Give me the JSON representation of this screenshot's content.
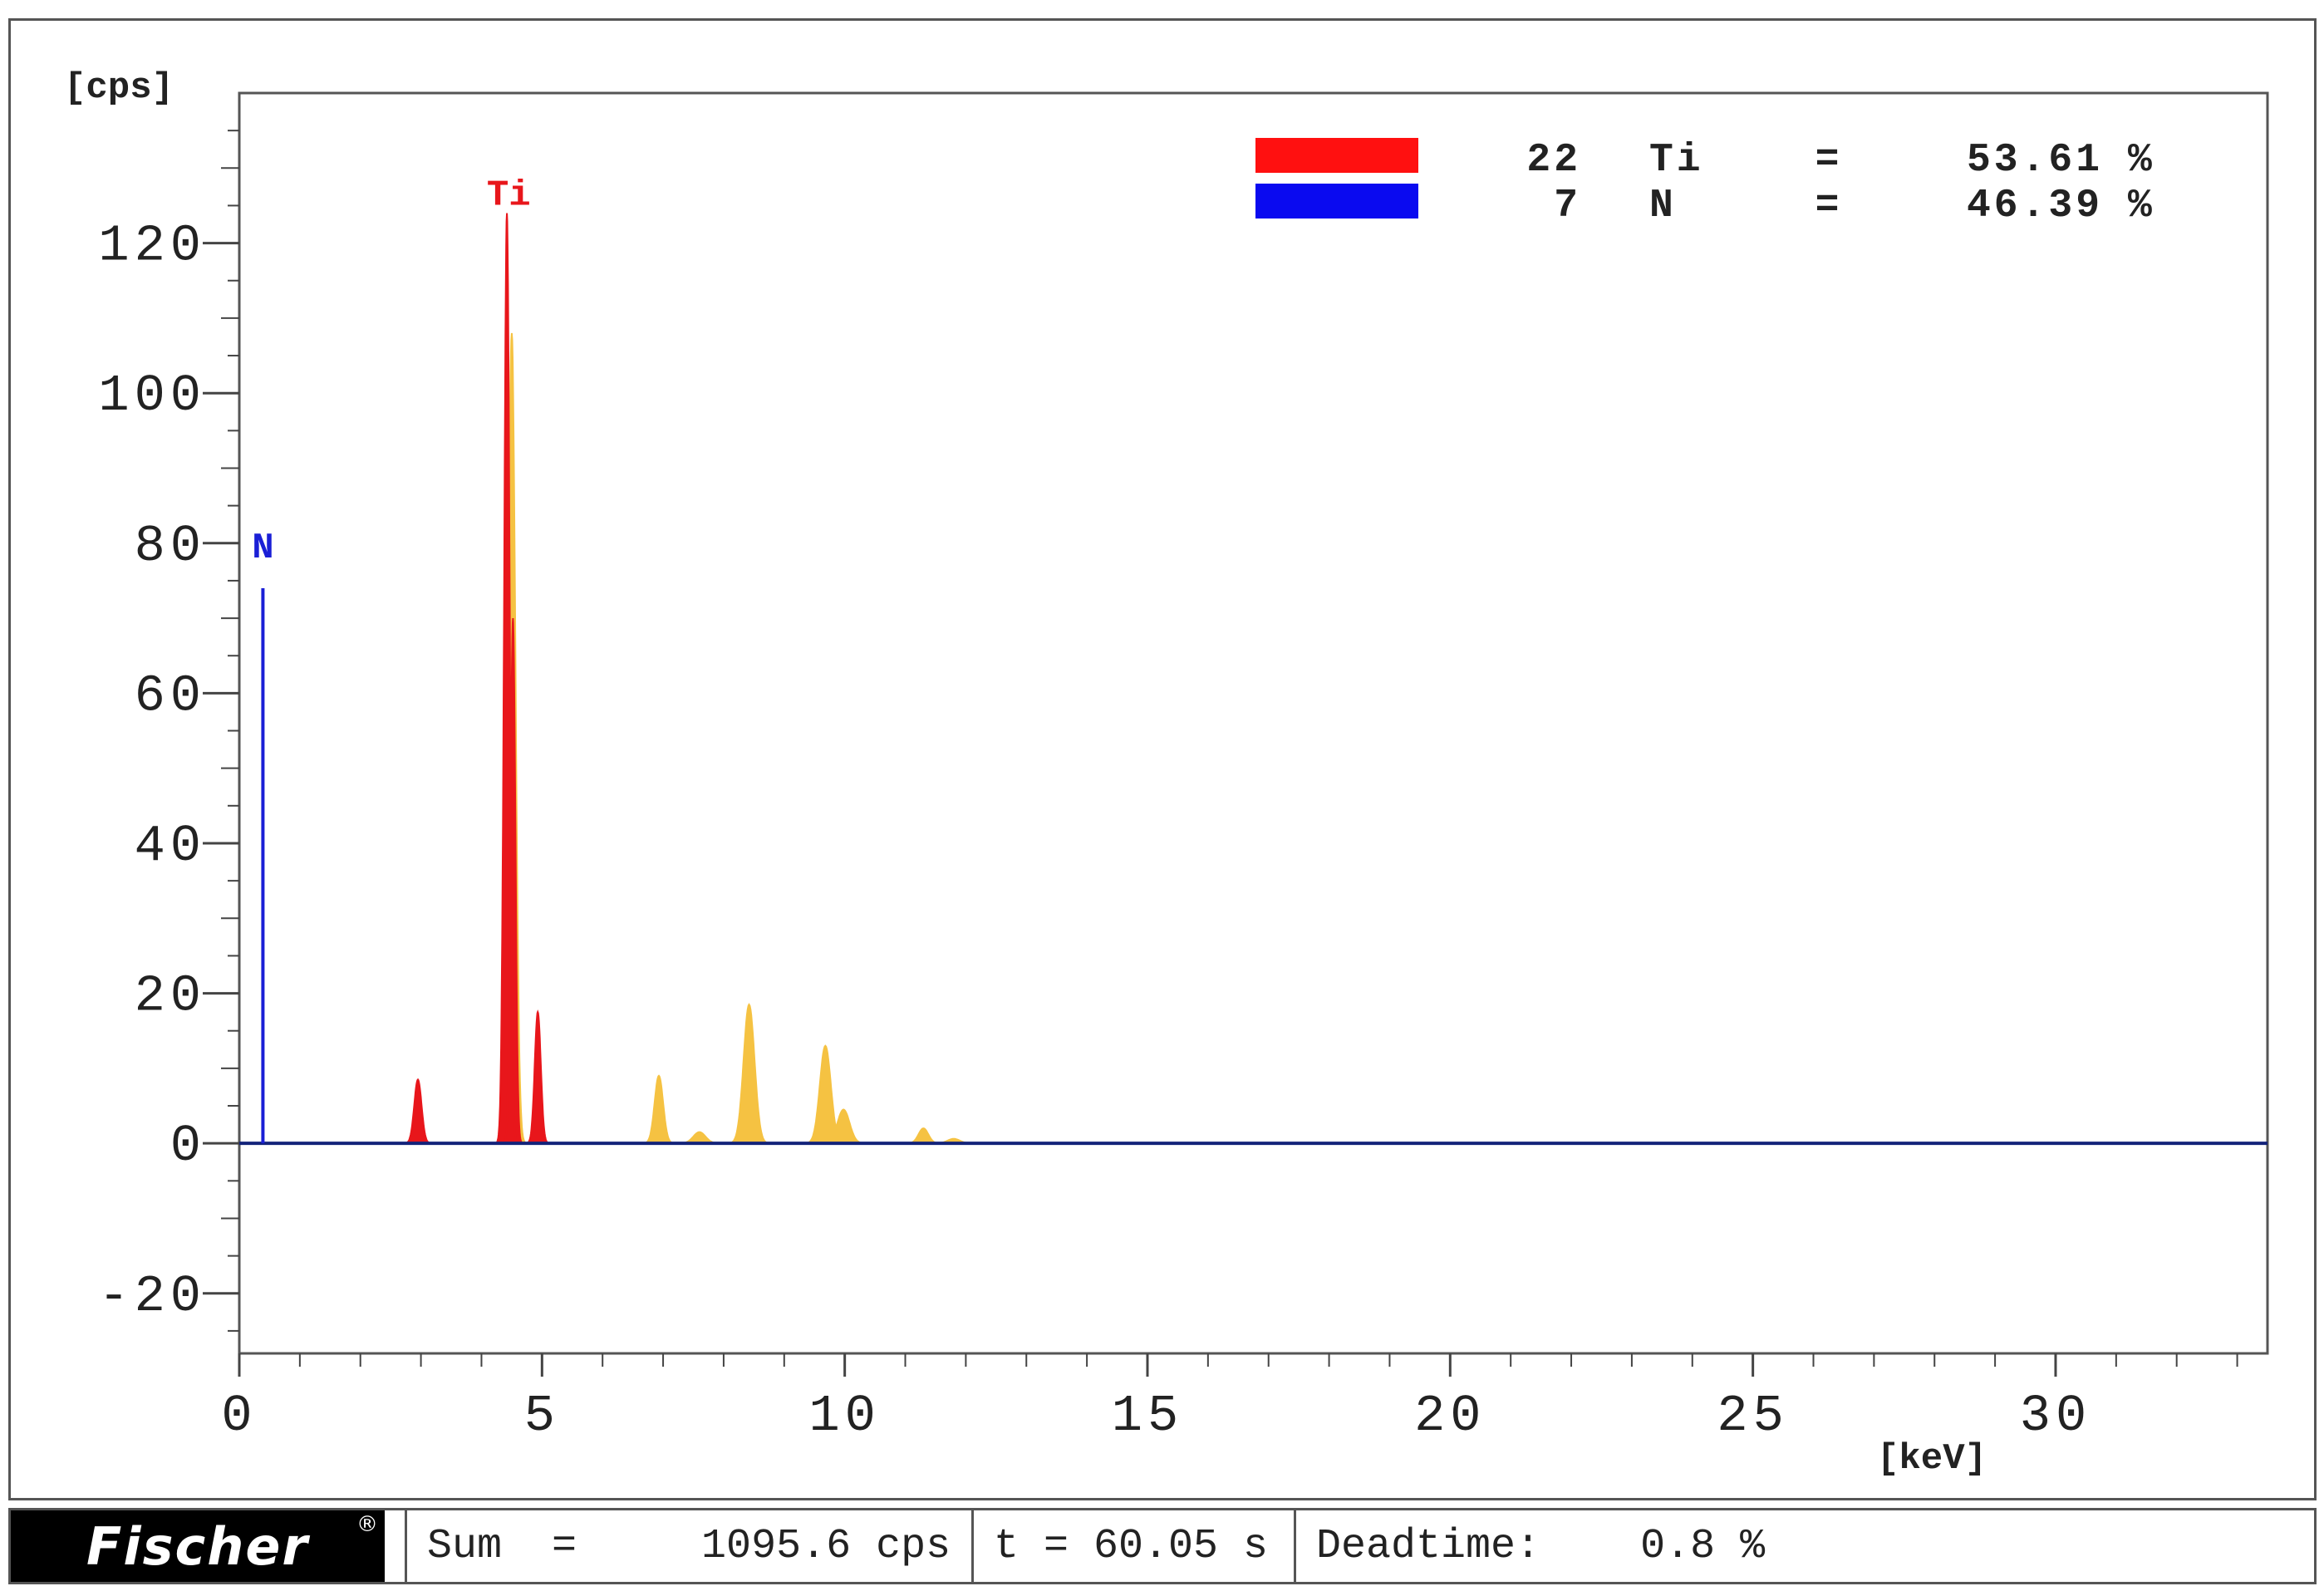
{
  "chart_data": {
    "type": "line",
    "title": "",
    "ylabel": "[cps]",
    "xlabel": "[keV]",
    "xlim": [
      0,
      33.5
    ],
    "ylim": [
      -28,
      140
    ],
    "xticks": [
      0,
      5,
      10,
      15,
      20,
      25,
      30
    ],
    "xtick_labels": [
      "0",
      "5",
      "10",
      "15",
      "20",
      "25",
      "30"
    ],
    "yticks": [
      -20,
      0,
      20,
      40,
      60,
      80,
      100,
      120
    ],
    "ytick_labels": [
      "-20",
      "0",
      "20",
      "40",
      "60",
      "80",
      "100",
      "120"
    ],
    "grid": false,
    "legend_position": "top-right",
    "series": [
      {
        "name": "Ti",
        "color": "#e8161b",
        "peaks": [
          {
            "center": 2.95,
            "height": 8.5,
            "width": 0.06
          },
          {
            "center": 4.42,
            "height": 124,
            "width": 0.045
          },
          {
            "center": 4.52,
            "height": 70,
            "width": 0.04
          },
          {
            "center": 4.93,
            "height": 17.5,
            "width": 0.05
          }
        ]
      },
      {
        "name": "N",
        "color": "#1a1fd6",
        "lines": [
          {
            "x": 0.39,
            "height": 74
          }
        ]
      },
      {
        "name": "spectrum",
        "color": "#f5c242",
        "peaks": [
          {
            "center": 4.5,
            "height": 108,
            "width": 0.06
          },
          {
            "center": 6.93,
            "height": 9,
            "width": 0.07
          },
          {
            "center": 7.6,
            "height": 1.5,
            "width": 0.1
          },
          {
            "center": 8.42,
            "height": 18.5,
            "width": 0.09
          },
          {
            "center": 9.68,
            "height": 13,
            "width": 0.09
          },
          {
            "center": 9.98,
            "height": 4.5,
            "width": 0.1
          },
          {
            "center": 11.3,
            "height": 2,
            "width": 0.08
          },
          {
            "center": 11.8,
            "height": 0.6,
            "width": 0.1
          }
        ]
      }
    ],
    "peak_labels": [
      {
        "text": "Ti",
        "x": 4.45,
        "y": 124,
        "color": "#e8161b"
      },
      {
        "text": "N",
        "x": 0.39,
        "y": 77,
        "color": "#1a1fd6"
      }
    ],
    "legend": [
      {
        "atomic_number": "22",
        "element": "Ti",
        "equals": "=",
        "value": "53.61",
        "unit": "%",
        "color": "#ff1010"
      },
      {
        "atomic_number": "7",
        "element": "N",
        "equals": "=",
        "value": "46.39",
        "unit": "%",
        "color": "#0a0af0"
      }
    ]
  },
  "status": {
    "logo": "Fischer",
    "logo_mark": "®",
    "sum": "Sum  =     1095.6 cps",
    "time": "t = 60.05 s",
    "deadtime": "Deadtime:    0.8 %"
  }
}
